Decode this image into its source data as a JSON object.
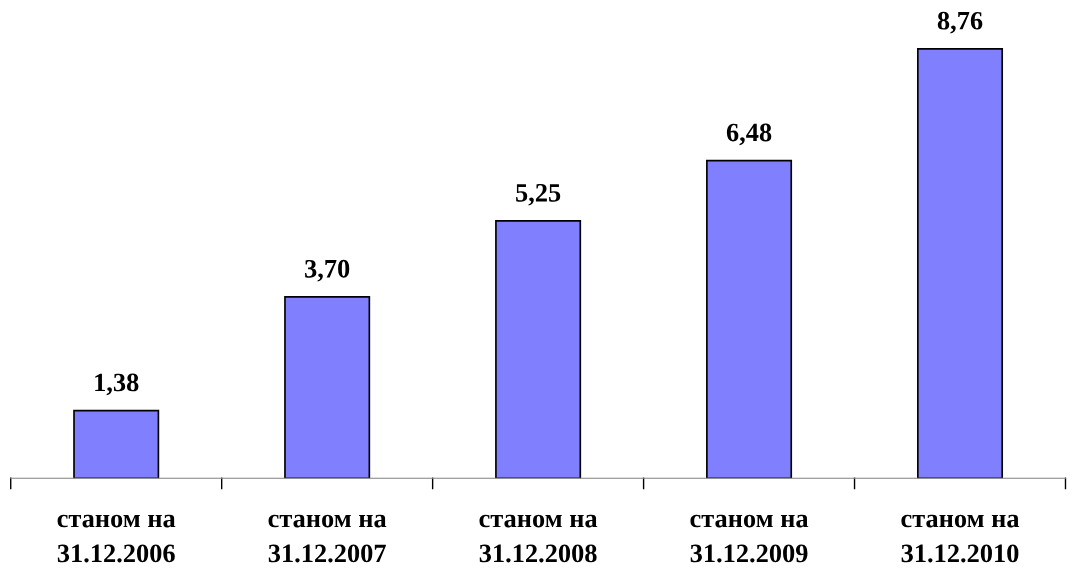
{
  "chart_data": {
    "type": "bar",
    "categories": [
      "станом на\n31.12.2006",
      "станом на\n31.12.2007",
      "станом на\n31.12.2008",
      "станом на\n31.12.2009",
      "станом на\n31.12.2010"
    ],
    "values": [
      1.38,
      3.7,
      5.25,
      6.48,
      8.76
    ],
    "value_labels": [
      "1,38",
      "3,70",
      "5,25",
      "6,48",
      "8,76"
    ],
    "color": "#8080ff",
    "grid": false,
    "legend": false,
    "tick_labels": "x"
  }
}
